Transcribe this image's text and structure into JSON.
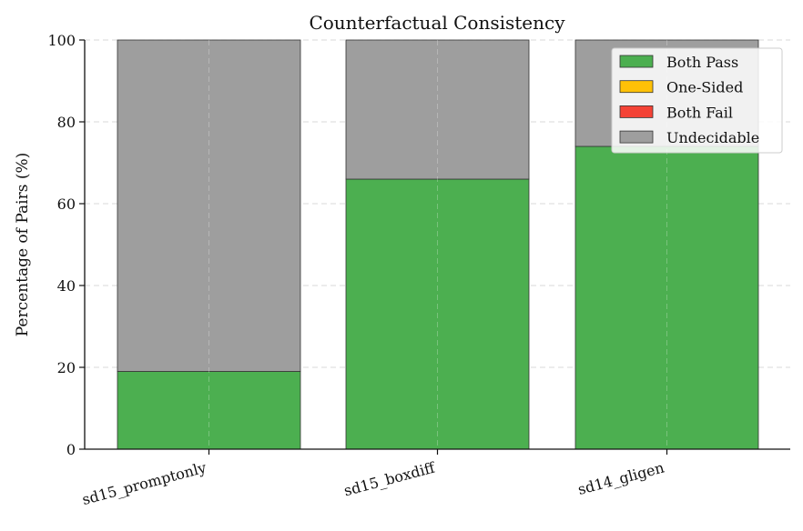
{
  "chart_data": {
    "type": "bar",
    "stacked": true,
    "title": "Counterfactual Consistency",
    "xlabel": "",
    "ylabel": "Percentage of Pairs (%)",
    "ylim": [
      0,
      100
    ],
    "yticks": [
      0,
      20,
      40,
      60,
      80,
      100
    ],
    "categories": [
      "sd15_promptonly",
      "sd15_boxdiff",
      "sd14_gligen"
    ],
    "series": [
      {
        "name": "Both Pass",
        "color": "#4caf50",
        "values": [
          19,
          66,
          74
        ]
      },
      {
        "name": "One-Sided",
        "color": "#ffc107",
        "values": [
          0,
          0,
          0
        ]
      },
      {
        "name": "Both Fail",
        "color": "#f44336",
        "values": [
          0,
          0,
          0
        ]
      },
      {
        "name": "Undecidable",
        "color": "#9e9e9e",
        "values": [
          81,
          34,
          26
        ]
      }
    ],
    "grid": true,
    "legend_position": "top-right"
  }
}
